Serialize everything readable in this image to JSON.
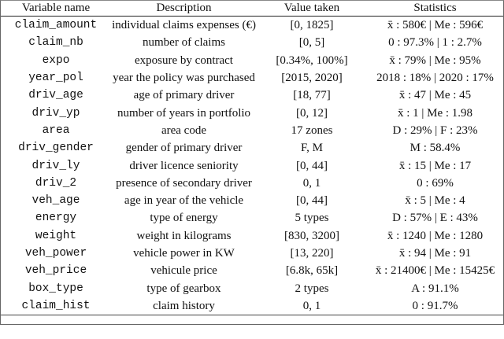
{
  "headers": [
    "Variable name",
    "Description",
    "Value taken",
    "Statistics"
  ],
  "rows": [
    {
      "name": "claim_amount",
      "description": "individual claims expenses (€)",
      "value": "[0, 1825]",
      "stats": "x̄ : 580€ | Me : 596€"
    },
    {
      "name": "claim_nb",
      "description": "number of claims",
      "value": "[0, 5]",
      "stats": "0 : 97.3% | 1 : 2.7%"
    },
    {
      "name": "expo",
      "description": "exposure by contract",
      "value": "[0.34%, 100%]",
      "stats": "x̄ : 79% | Me : 95%"
    },
    {
      "name": "year_pol",
      "description": "year the policy was purchased",
      "value": "[2015, 2020]",
      "stats": "2018 : 18% | 2020 : 17%"
    },
    {
      "name": "driv_age",
      "description": "age of primary driver",
      "value": "[18, 77]",
      "stats": "x̄ : 47 | Me : 45"
    },
    {
      "name": "driv_yp",
      "description": "number of years in portfolio",
      "value": "[0, 12]",
      "stats": "x̄ : 1 | Me : 1.98"
    },
    {
      "name": "area",
      "description": "area code",
      "value": "17 zones",
      "stats": "D : 29% | F : 23%"
    },
    {
      "name": "driv_gender",
      "description": "gender of primary driver",
      "value": "F, M",
      "stats": "M : 58.4%"
    },
    {
      "name": "driv_ly",
      "description": "driver licence seniority",
      "value": "[0, 44]",
      "stats": "x̄ : 15 | Me : 17"
    },
    {
      "name": "driv_2",
      "description": "presence of secondary driver",
      "value": "0, 1",
      "stats": "0 : 69%"
    },
    {
      "name": "veh_age",
      "description": "age in year of the vehicle",
      "value": "[0, 44]",
      "stats": "x̄ : 5 | Me : 4"
    },
    {
      "name": "energy",
      "description": "type of energy",
      "value": "5 types",
      "stats": "D : 57% | E : 43%"
    },
    {
      "name": "weight",
      "description": "weight in kilograms",
      "value": "[830, 3200]",
      "stats": "x̄ : 1240 | Me : 1280"
    },
    {
      "name": "veh_power",
      "description": "vehicle power in KW",
      "value": "[13, 220]",
      "stats": "x̄ : 94 | Me : 91"
    },
    {
      "name": "veh_price",
      "description": "vehicule price",
      "value": "[6.8k, 65k]",
      "stats": "x̄ : 21400€ | Me : 15425€"
    },
    {
      "name": "box_type",
      "description": "type of gearbox",
      "value": "2 types",
      "stats": "A : 91.1%"
    },
    {
      "name": "claim_hist",
      "description": "claim history",
      "value": "0, 1",
      "stats": "0 : 91.7%"
    }
  ]
}
